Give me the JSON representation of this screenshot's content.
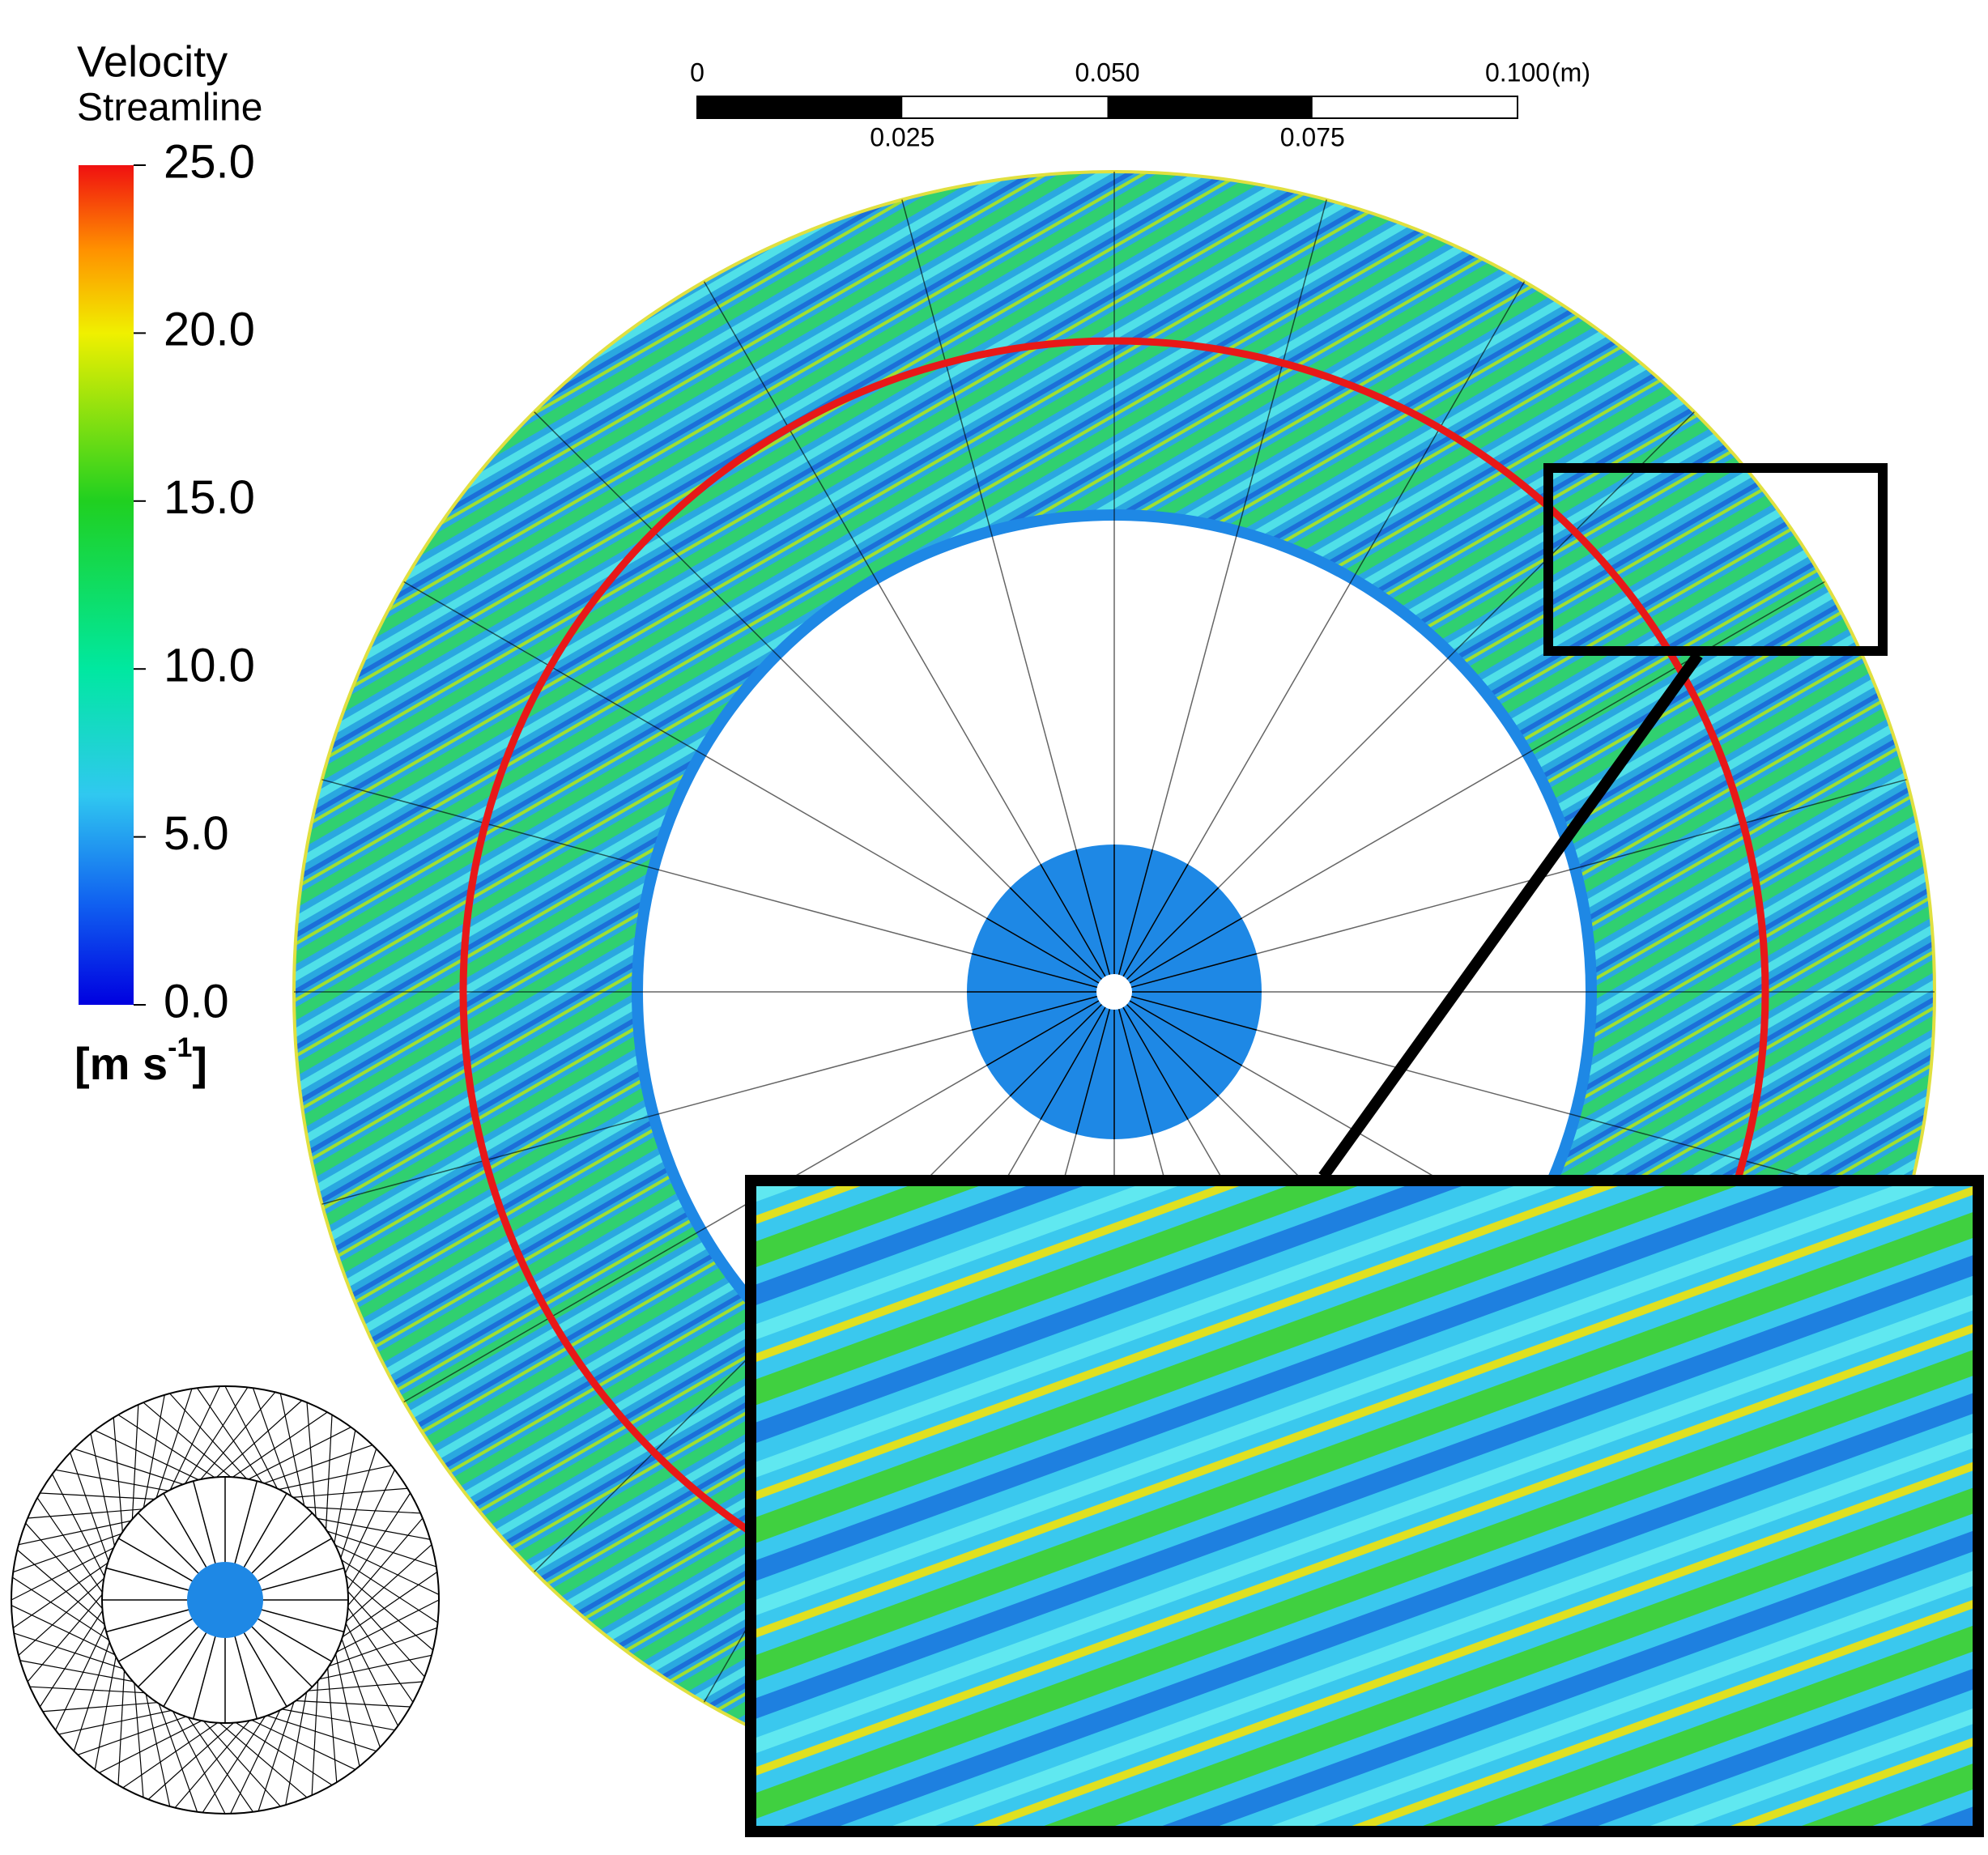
{
  "legend": {
    "title": "Velocity",
    "subtitle": "Streamline",
    "range": [
      0,
      25
    ],
    "ticks": [
      {
        "value": 25,
        "label": "25.0"
      },
      {
        "value": 20,
        "label": "20.0"
      },
      {
        "value": 15,
        "label": "15.0"
      },
      {
        "value": 10,
        "label": "10.0"
      },
      {
        "value": 5,
        "label": "5.0"
      },
      {
        "value": 0,
        "label": "0.0"
      }
    ],
    "unit": {
      "base": "[m s",
      "sup": "-1",
      "end": "]"
    }
  },
  "scale_bar": {
    "range": [
      0,
      0.1
    ],
    "unit": "(m)",
    "ticks": [
      0,
      {
        "value": 0.025,
        "label": "0.025"
      },
      {
        "value": 0.05,
        "label": "0.050"
      },
      {
        "value": 0.075,
        "label": "0.075"
      },
      {
        "value": 0.1,
        "label": "0.100"
      }
    ]
  }
}
